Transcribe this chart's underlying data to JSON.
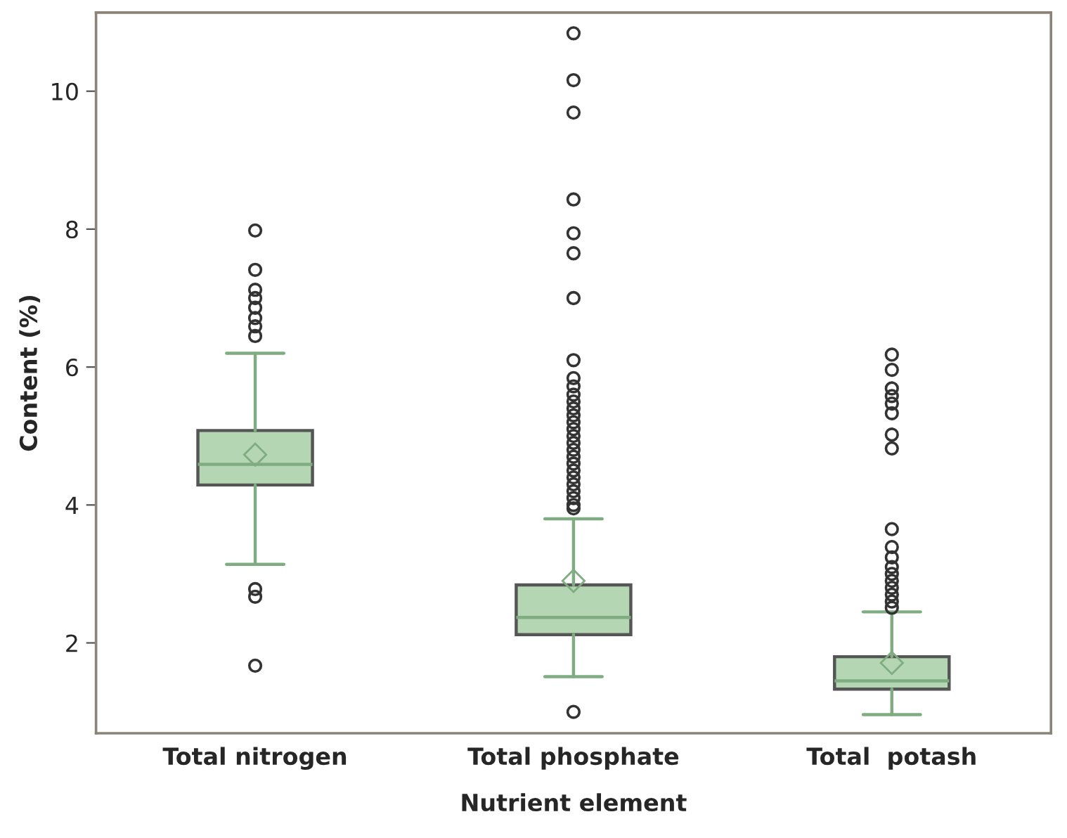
{
  "chart_data": {
    "type": "box",
    "xlabel": "Nutrient element",
    "ylabel": "Content (%)",
    "categories": [
      "Total nitrogen",
      "Total phosphate",
      "Total  potash"
    ],
    "color": "#b5d6b2",
    "boxes": [
      {
        "low": 3.14,
        "q1": 4.29,
        "median": 4.59,
        "q3": 5.08,
        "high": 6.2,
        "mean": 4.73,
        "outliers": [
          7.98,
          7.41,
          7.12,
          7.0,
          6.86,
          6.71,
          6.59,
          6.45,
          2.78,
          2.67,
          1.67
        ]
      },
      {
        "low": 1.51,
        "q1": 2.12,
        "median": 2.37,
        "q3": 2.84,
        "high": 3.8,
        "mean": 2.9,
        "outliers": [
          10.84,
          10.16,
          9.69,
          8.43,
          7.94,
          7.65,
          7.0,
          6.1,
          5.84,
          5.72,
          5.6,
          5.5,
          5.4,
          5.3,
          5.2,
          5.1,
          5.0,
          4.9,
          4.8,
          4.7,
          4.6,
          4.5,
          4.4,
          4.3,
          4.2,
          4.1,
          4.0,
          3.95,
          1.0
        ]
      },
      {
        "low": 0.96,
        "q1": 1.33,
        "median": 1.45,
        "q3": 1.8,
        "high": 2.45,
        "mean": 1.71,
        "outliers": [
          6.18,
          5.96,
          5.69,
          5.58,
          5.47,
          5.33,
          5.02,
          4.82,
          3.65,
          3.39,
          3.24,
          3.1,
          3.0,
          2.9,
          2.8,
          2.7,
          2.6,
          2.51
        ]
      }
    ],
    "ylim": [
      0.69,
      11.14
    ],
    "yticks": [
      2,
      4,
      6,
      8,
      10
    ],
    "grid": false
  }
}
